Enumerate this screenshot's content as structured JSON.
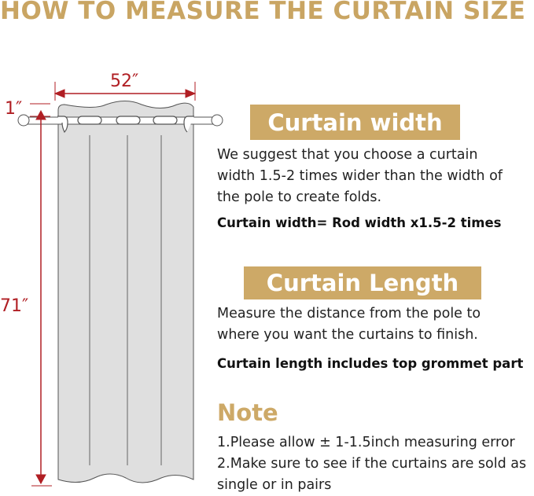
{
  "title": "HOW TO MEASURE THE CURTAIN SIZE",
  "diagram": {
    "width_label": "52″",
    "top_label": "1″",
    "length_label": "71″",
    "dimension_color": "#b01e23",
    "curtain_color": "#dfdfdf"
  },
  "width_section": {
    "heading": "Curtain width",
    "text": "We suggest that you choose a curtain width 1.5-2 times wider than the width of the pole to create folds.",
    "formula": "Curtain width= Rod width x1.5-2 times"
  },
  "length_section": {
    "heading": "Curtain Length",
    "text": "Measure the distance from the pole to where you want the curtains to finish.",
    "formula": "Curtain length includes top grommet part"
  },
  "note": {
    "heading": "Note",
    "items": [
      "1.Please allow ± 1-1.5inch measuring error",
      "2.Make sure to see if the curtains are sold as single or in pairs"
    ]
  },
  "accent_color": "#cda967"
}
